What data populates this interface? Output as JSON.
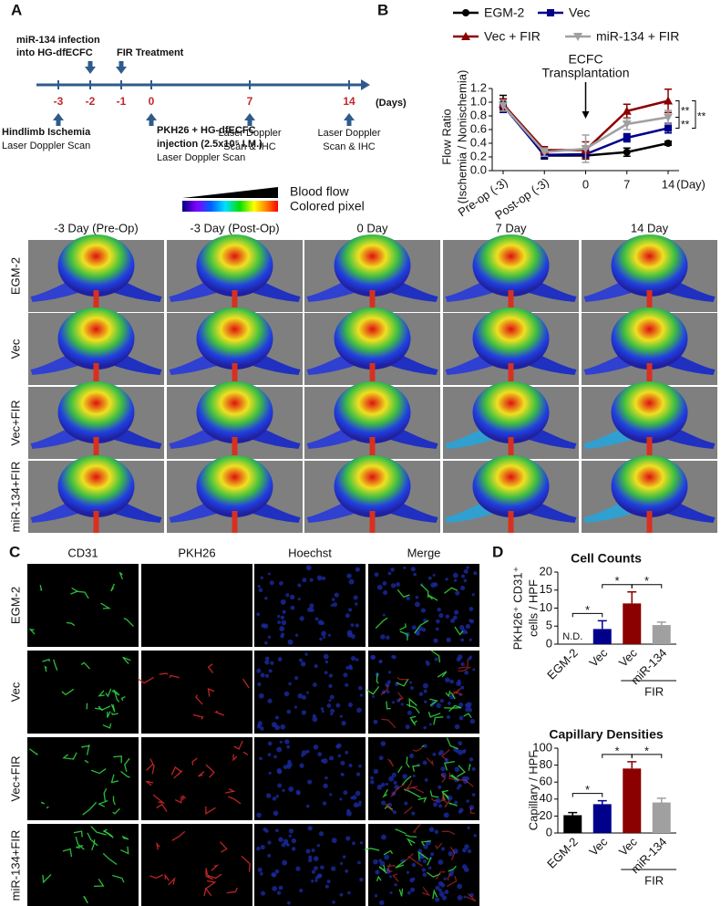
{
  "panel_labels": [
    "A",
    "B",
    "C",
    "D"
  ],
  "timeline": {
    "top_notes": [
      [
        "miR-134 infection",
        "into HG-dfECFC"
      ],
      [
        "FIR Treatment"
      ]
    ],
    "days": [
      "-3",
      "-2",
      "-1",
      "0",
      "7",
      "14"
    ],
    "unit": "(Days)",
    "bottom_notes": [
      [
        "Hindlimb Ischemia",
        "Laser Doppler Scan"
      ],
      [
        "PKH26 + HG-dfECFC",
        "injection (2.5x10⁵ I.M.)",
        "Laser Doppler Scan"
      ],
      [
        "Laser Doppler",
        "Scan & IHC"
      ],
      [
        "Laser Doppler",
        "Scan & IHC"
      ]
    ]
  },
  "colorbar": [
    "Blood flow",
    "Colored pixel"
  ],
  "doppler": {
    "columns": [
      "-3 Day (Pre-Op)",
      "-3 Day (Post-Op)",
      "0 Day",
      "7 Day",
      "14 Day"
    ],
    "rows": [
      "EGM-2",
      "Vec",
      "Vec+FIR",
      "miR-134+FIR"
    ]
  },
  "fluorescence": {
    "columns": [
      "CD31",
      "PKH26",
      "Hoechst",
      "Merge"
    ],
    "rows": [
      "EGM-2",
      "Vec",
      "Vec+FIR",
      "miR-134+FIR"
    ]
  },
  "chart_data": [
    {
      "type": "line",
      "categories": [
        "Pre-op (-3)",
        "Post-op (-3)",
        "0",
        "7",
        "14"
      ],
      "xlabel": "(Day)",
      "ylabel": [
        "Flow Ratio",
        "(Ischemia / Nonischemia)"
      ],
      "ylim": [
        0,
        1.2
      ],
      "yticks": [
        {
          "value": 0,
          "label": "0.0"
        },
        0.2,
        0.4,
        0.6,
        0.8,
        {
          "value": 1,
          "label": "1.0"
        },
        1.2
      ],
      "annotations": [
        "ECFC",
        "Transplantation"
      ],
      "significance": [
        "**",
        "**",
        "**"
      ],
      "series": [
        {
          "name": "EGM-2",
          "color": "#000000",
          "marker": "circle",
          "values": [
            0.98,
            0.22,
            0.22,
            0.27,
            0.4
          ],
          "errors": [
            0.12,
            0.05,
            0.05,
            0.06,
            0.03
          ]
        },
        {
          "name": "Vec",
          "color": "#00008b",
          "marker": "square",
          "values": [
            0.95,
            0.23,
            0.24,
            0.48,
            0.62
          ],
          "errors": [
            0.1,
            0.05,
            0.06,
            0.06,
            0.07
          ]
        },
        {
          "name": "Vec + FIR",
          "color": "#8b0000",
          "marker": "triangle",
          "values": [
            0.97,
            0.3,
            0.3,
            0.87,
            1.02
          ],
          "errors": [
            0.08,
            0.05,
            0.12,
            0.1,
            0.17
          ]
        },
        {
          "name": "miR-134 + FIR",
          "color": "#a0a0a0",
          "marker": "triangle-down",
          "values": [
            0.95,
            0.27,
            0.32,
            0.68,
            0.78
          ],
          "errors": [
            0.08,
            0.06,
            0.2,
            0.08,
            0.1
          ]
        }
      ]
    },
    {
      "type": "bar",
      "title": "Cell Counts",
      "ylabel": [
        "PKH26⁺ CD31⁺",
        "cells / HPF"
      ],
      "categories": [
        "EGM-2",
        "Vec",
        "Vec",
        "miR-134"
      ],
      "group_label": "FIR",
      "nd_label": "N.D.",
      "values": [
        null,
        4.2,
        11.3,
        5.3
      ],
      "errors": [
        null,
        2.3,
        3.2,
        0.8
      ],
      "colors": [
        "#000000",
        "#00008b",
        "#8b0000",
        "#a0a0a0"
      ],
      "ylim": [
        0,
        20
      ],
      "yticks": [
        0,
        5,
        10,
        15,
        20
      ],
      "significance": [
        "*",
        "*",
        "*"
      ]
    },
    {
      "type": "bar",
      "title": "Capillary Densities",
      "ylabel": [
        "Capillary / HPF"
      ],
      "categories": [
        "EGM-2",
        "Vec",
        "Vec",
        "miR-134"
      ],
      "group_label": "FIR",
      "values": [
        21,
        34,
        76,
        36
      ],
      "errors": [
        3,
        4,
        8,
        5
      ],
      "colors": [
        "#000000",
        "#00008b",
        "#8b0000",
        "#a0a0a0"
      ],
      "ylim": [
        0,
        100
      ],
      "yticks": [
        0,
        20,
        40,
        60,
        80,
        100
      ],
      "significance": [
        "*",
        "*",
        "*"
      ]
    }
  ]
}
